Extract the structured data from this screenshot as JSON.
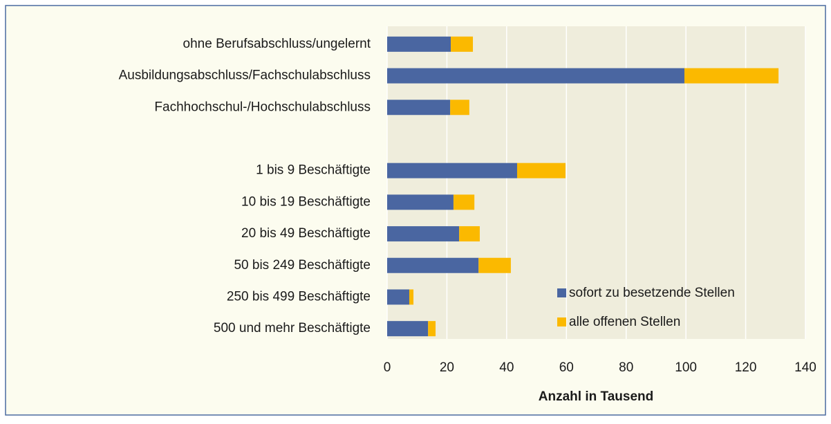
{
  "chart_data": {
    "type": "stacked_barh",
    "x_label": "Anzahl in Tausend",
    "categories": [
      "ohne Berufsabschluss/ungelernt",
      "Ausbildungsabschluss/Fachschulabschluss",
      "Fachhochschul-/Hochschulabschluss",
      null,
      "1 bis 9 Beschäftigte",
      "10 bis 19 Beschäftigte",
      "20 bis 49 Beschäftigte",
      "50 bis 249 Beschäftigte",
      "250 bis 499 Beschäftigte",
      "500 und mehr Beschäftigte"
    ],
    "series": [
      {
        "name": "sofort zu besetzende Stellen",
        "color": "#4a66a1",
        "values": [
          21.3,
          99.5,
          21.1,
          null,
          43.5,
          22.2,
          24.1,
          30.6,
          7.4,
          13.7
        ]
      },
      {
        "name": "alle offenen Stellen",
        "color": "#fbb900",
        "values": [
          7.4,
          31.5,
          6.4,
          null,
          16.2,
          7.0,
          6.9,
          10.8,
          1.4,
          2.5
        ]
      }
    ],
    "xlim": [
      0,
      140
    ],
    "xticks": [
      0,
      20,
      40,
      60,
      80,
      100,
      120,
      140
    ],
    "grid": true,
    "legend": "lower right"
  }
}
